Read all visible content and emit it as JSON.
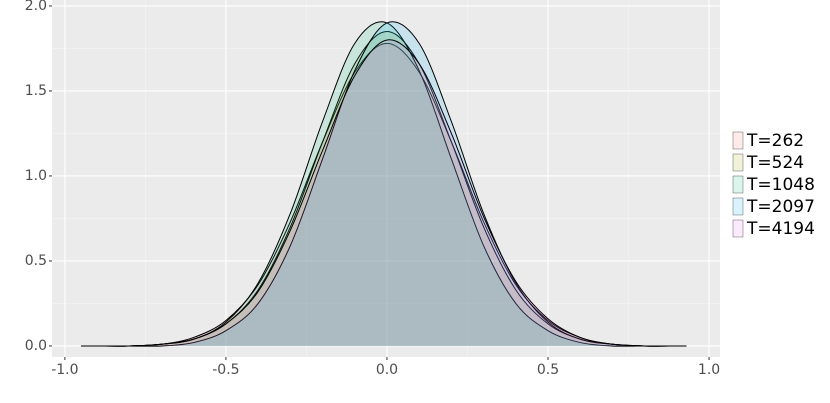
{
  "chart_data": {
    "type": "density",
    "x": [
      -0.95,
      -0.9,
      -0.8,
      -0.7,
      -0.6,
      -0.5,
      -0.4,
      -0.3,
      -0.2,
      -0.1,
      0,
      0.1,
      0.2,
      0.3,
      0.4,
      0.5,
      0.6,
      0.7,
      0.8,
      0.9,
      0.93
    ],
    "series": [
      {
        "name": "T=262",
        "color": "#F8766D",
        "values": [
          0,
          0,
          0,
          0.01,
          0.05,
          0.15,
          0.36,
          0.73,
          1.2,
          1.61,
          1.78,
          1.61,
          1.2,
          0.73,
          0.36,
          0.15,
          0.05,
          0.01,
          0,
          0,
          0
        ]
      },
      {
        "name": "T=524",
        "color": "#A3A500",
        "values": [
          0,
          0,
          0,
          0.01,
          0.04,
          0.13,
          0.33,
          0.7,
          1.2,
          1.66,
          1.85,
          1.66,
          1.2,
          0.7,
          0.33,
          0.13,
          0.04,
          0.01,
          0,
          0,
          0
        ]
      },
      {
        "name": "T=1048",
        "color": "#00BF7D",
        "values": [
          0,
          0,
          0,
          0.01,
          0.04,
          0.14,
          0.37,
          0.78,
          1.32,
          1.78,
          1.9,
          1.62,
          1.1,
          0.59,
          0.25,
          0.09,
          0.02,
          0,
          0,
          0,
          0
        ]
      },
      {
        "name": "T=2097",
        "color": "#00B0F6",
        "values": [
          0,
          0,
          0,
          0,
          0.02,
          0.09,
          0.25,
          0.59,
          1.1,
          1.62,
          1.9,
          1.78,
          1.32,
          0.78,
          0.37,
          0.14,
          0.04,
          0.01,
          0,
          0,
          0
        ]
      },
      {
        "name": "T=4194",
        "color": "#E76BF3",
        "values": [
          0,
          0,
          0,
          0.01,
          0.04,
          0.13,
          0.32,
          0.68,
          1.15,
          1.59,
          1.8,
          1.66,
          1.25,
          0.76,
          0.38,
          0.16,
          0.05,
          0.01,
          0,
          0,
          0
        ]
      }
    ],
    "xlim": [
      -1.04,
      1.034
    ],
    "ylim": [
      -0.065,
      2.035
    ],
    "xticks": [
      {
        "value": -1,
        "label": "-1.0"
      },
      {
        "value": -0.5,
        "label": "-0.5"
      },
      {
        "value": 0,
        "label": "0.0"
      },
      {
        "value": 0.5,
        "label": "0.5"
      },
      {
        "value": 1,
        "label": "1.0"
      }
    ],
    "yticks": [
      {
        "value": 0,
        "label": "0.0"
      },
      {
        "value": 0.5,
        "label": "0.5"
      },
      {
        "value": 1,
        "label": "1.0"
      },
      {
        "value": 1.5,
        "label": "1.5"
      },
      {
        "value": 2,
        "label": "2.0"
      }
    ],
    "grid": true,
    "legend_position": "right"
  }
}
